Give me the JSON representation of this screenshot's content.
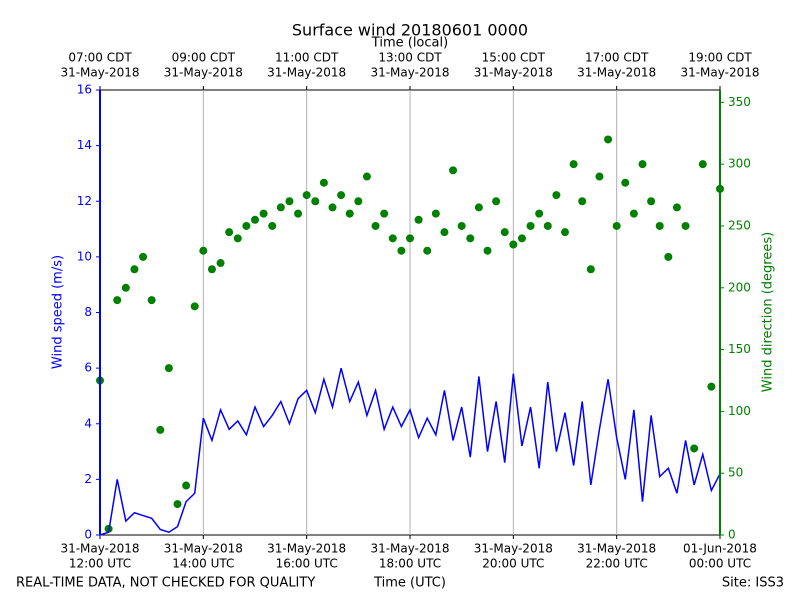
{
  "chart_data": {
    "type": "combo",
    "title": "Surface wind 20180601 0000",
    "x2label": "Time (local)",
    "xlabel": "Time (UTC)",
    "ylabel": "Wind speed (m/s)",
    "y2label": "Wind direction (degrees)",
    "footer_left": "REAL-TIME DATA, NOT CHECKED FOR QUALITY",
    "footer_right": "Site: ISS3",
    "xlim": [
      0,
      720
    ],
    "xticks": [
      {
        "value": 0,
        "label": "12:00 UTC",
        "date": "31-May-2018"
      },
      {
        "value": 120,
        "label": "14:00 UTC",
        "date": "31-May-2018"
      },
      {
        "value": 240,
        "label": "16:00 UTC",
        "date": "31-May-2018"
      },
      {
        "value": 360,
        "label": "18:00 UTC",
        "date": "31-May-2018"
      },
      {
        "value": 480,
        "label": "20:00 UTC",
        "date": "31-May-2018"
      },
      {
        "value": 600,
        "label": "22:00 UTC",
        "date": "31-May-2018"
      },
      {
        "value": 720,
        "label": "00:00 UTC",
        "date": "01-Jun-2018"
      }
    ],
    "x2ticks": [
      {
        "value": 0,
        "label": "07:00 CDT",
        "date": "31-May-2018"
      },
      {
        "value": 120,
        "label": "09:00 CDT",
        "date": "31-May-2018"
      },
      {
        "value": 240,
        "label": "11:00 CDT",
        "date": "31-May-2018"
      },
      {
        "value": 360,
        "label": "13:00 CDT",
        "date": "31-May-2018"
      },
      {
        "value": 480,
        "label": "15:00 CDT",
        "date": "31-May-2018"
      },
      {
        "value": 600,
        "label": "17:00 CDT",
        "date": "31-May-2018"
      },
      {
        "value": 720,
        "label": "19:00 CDT",
        "date": "31-May-2018"
      }
    ],
    "ylim": [
      0,
      16
    ],
    "yticks": [
      0,
      2,
      4,
      6,
      8,
      10,
      12,
      14,
      16
    ],
    "y2lim": [
      0,
      360
    ],
    "y2ticks": [
      0,
      50,
      100,
      150,
      200,
      250,
      300,
      350
    ],
    "grid": true,
    "x": [
      0,
      10,
      20,
      30,
      40,
      50,
      60,
      70,
      80,
      90,
      100,
      110,
      120,
      130,
      140,
      150,
      160,
      170,
      180,
      190,
      200,
      210,
      220,
      230,
      240,
      250,
      260,
      270,
      280,
      290,
      300,
      310,
      320,
      330,
      340,
      350,
      360,
      370,
      380,
      390,
      400,
      410,
      420,
      430,
      440,
      450,
      460,
      470,
      480,
      490,
      500,
      510,
      520,
      530,
      540,
      550,
      560,
      570,
      580,
      590,
      600,
      610,
      620,
      630,
      640,
      650,
      660,
      670,
      680,
      690,
      700,
      710,
      720
    ],
    "series": [
      {
        "name": "Wind speed",
        "kind": "line",
        "color": "#0000ff",
        "values": [
          0,
          0.1,
          2.0,
          0.5,
          0.8,
          0.7,
          0.6,
          0.2,
          0.1,
          0.3,
          1.2,
          1.5,
          4.2,
          3.4,
          4.5,
          3.8,
          4.1,
          3.6,
          4.6,
          3.9,
          4.3,
          4.8,
          4.0,
          4.9,
          5.2,
          4.4,
          5.6,
          4.6,
          6.0,
          4.8,
          5.5,
          4.3,
          5.2,
          3.8,
          4.6,
          3.9,
          4.5,
          3.5,
          4.2,
          3.6,
          5.2,
          3.4,
          4.6,
          2.8,
          5.7,
          3.0,
          4.8,
          2.6,
          5.8,
          3.2,
          4.6,
          2.4,
          5.5,
          3.0,
          4.4,
          2.5,
          4.8,
          1.8,
          3.8,
          5.6,
          3.5,
          2.0,
          4.5,
          1.2,
          4.3,
          2.1,
          2.4,
          1.5,
          3.4,
          1.8,
          2.9,
          1.6,
          2.2
        ]
      },
      {
        "name": "Wind direction",
        "kind": "scatter",
        "axis": "y2",
        "color": "#008000",
        "values": [
          125,
          5,
          190,
          200,
          215,
          225,
          190,
          85,
          135,
          25,
          40,
          185,
          230,
          215,
          220,
          245,
          240,
          250,
          255,
          260,
          250,
          265,
          270,
          260,
          275,
          270,
          285,
          265,
          275,
          260,
          270,
          290,
          250,
          260,
          240,
          230,
          240,
          255,
          230,
          260,
          245,
          295,
          250,
          240,
          265,
          230,
          270,
          245,
          235,
          240,
          250,
          260,
          250,
          275,
          245,
          300,
          270,
          215,
          290,
          320,
          250,
          285,
          260,
          300,
          270,
          250,
          225,
          265,
          250,
          70,
          300,
          120,
          280
        ]
      }
    ]
  }
}
